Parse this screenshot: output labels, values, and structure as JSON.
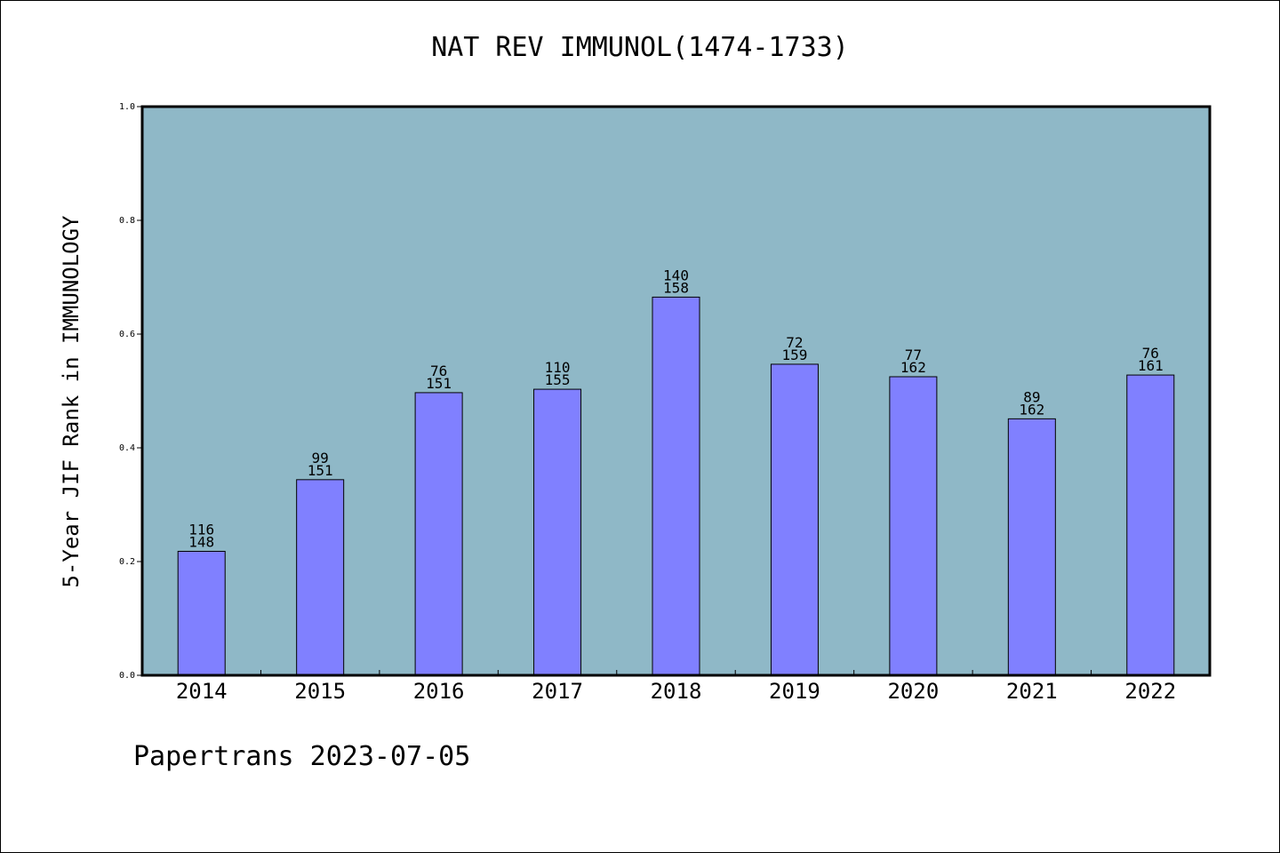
{
  "chart_data": {
    "type": "bar",
    "title": "NAT REV IMMUNOL(1474-1733)",
    "xlabel": "",
    "ylabel": "5-Year JIF Rank in IMMUNOLOGY",
    "ylim": [
      0,
      1.0
    ],
    "yticks": [
      "0.0",
      "0.2",
      "0.4",
      "0.6",
      "0.8",
      "1.0"
    ],
    "grid": false,
    "categories": [
      "2014",
      "2015",
      "2016",
      "2017",
      "2018",
      "2019",
      "2020",
      "2021",
      "2022"
    ],
    "values": [
      0.218,
      0.344,
      0.497,
      0.503,
      0.665,
      0.547,
      0.525,
      0.451,
      0.528
    ],
    "annotations": [
      {
        "rank": "116",
        "total": "148"
      },
      {
        "rank": "99",
        "total": "151"
      },
      {
        "rank": "76",
        "total": "151"
      },
      {
        "rank": "110",
        "total": "155"
      },
      {
        "rank": "140",
        "total": "158"
      },
      {
        "rank": "72",
        "total": "159"
      },
      {
        "rank": "77",
        "total": "162"
      },
      {
        "rank": "89",
        "total": "162"
      },
      {
        "rank": "76",
        "total": "161"
      }
    ],
    "colors": {
      "plot_background": "#8fb8c7",
      "bar_fill": "#8080ff",
      "bar_stroke": "#000000"
    }
  },
  "footer": "Papertrans 2023-07-05"
}
